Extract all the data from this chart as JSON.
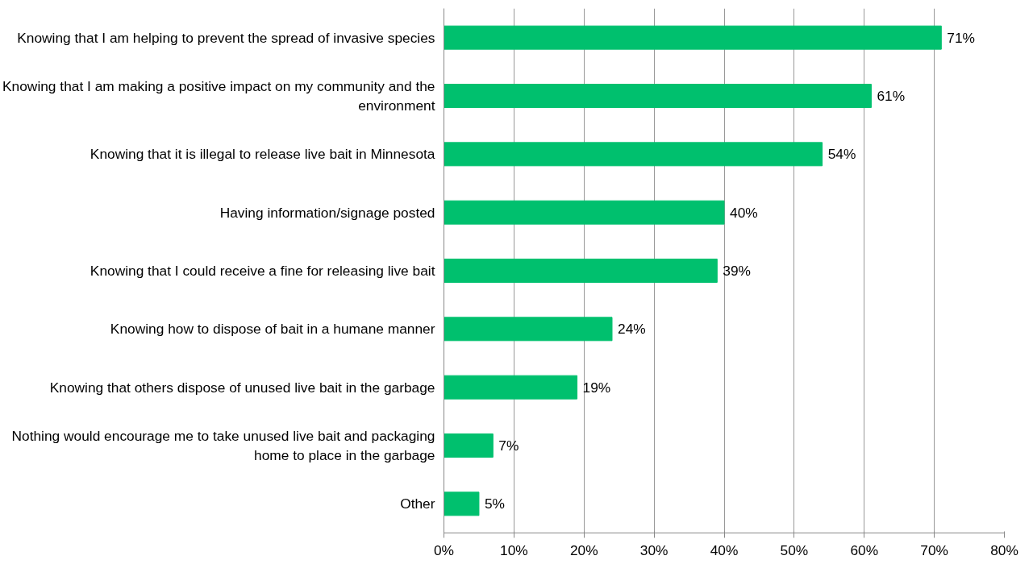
{
  "chart_data": {
    "type": "bar",
    "orientation": "horizontal",
    "categories": [
      "Knowing that I am helping to prevent the spread of invasive species",
      "Knowing that I am making a positive impact on my community and the environment",
      "Knowing that it is illegal to release live bait in Minnesota",
      "Having information/signage posted",
      "Knowing that I could receive a fine for releasing live bait",
      "Knowing how to dispose of bait in a humane manner",
      "Knowing that others dispose of unused live bait in the garbage",
      "Nothing would encourage me to take unused live bait and packaging home to place in the garbage",
      "Other"
    ],
    "values": [
      71,
      61,
      54,
      40,
      39,
      24,
      19,
      7,
      5
    ],
    "value_labels": [
      "71%",
      "61%",
      "54%",
      "40%",
      "39%",
      "24%",
      "19%",
      "7%",
      "5%"
    ],
    "color": "#00c06e",
    "xlim": [
      0,
      80
    ],
    "xticks": [
      {
        "value": 0,
        "label": "0%"
      },
      {
        "value": 10,
        "label": "10%"
      },
      {
        "value": 20,
        "label": "20%"
      },
      {
        "value": 30,
        "label": "30%"
      },
      {
        "value": 40,
        "label": "40%"
      },
      {
        "value": 50,
        "label": "50%"
      },
      {
        "value": 60,
        "label": "60%"
      },
      {
        "value": 70,
        "label": "70%"
      },
      {
        "value": 80,
        "label": "80%"
      }
    ],
    "grid": "x"
  }
}
